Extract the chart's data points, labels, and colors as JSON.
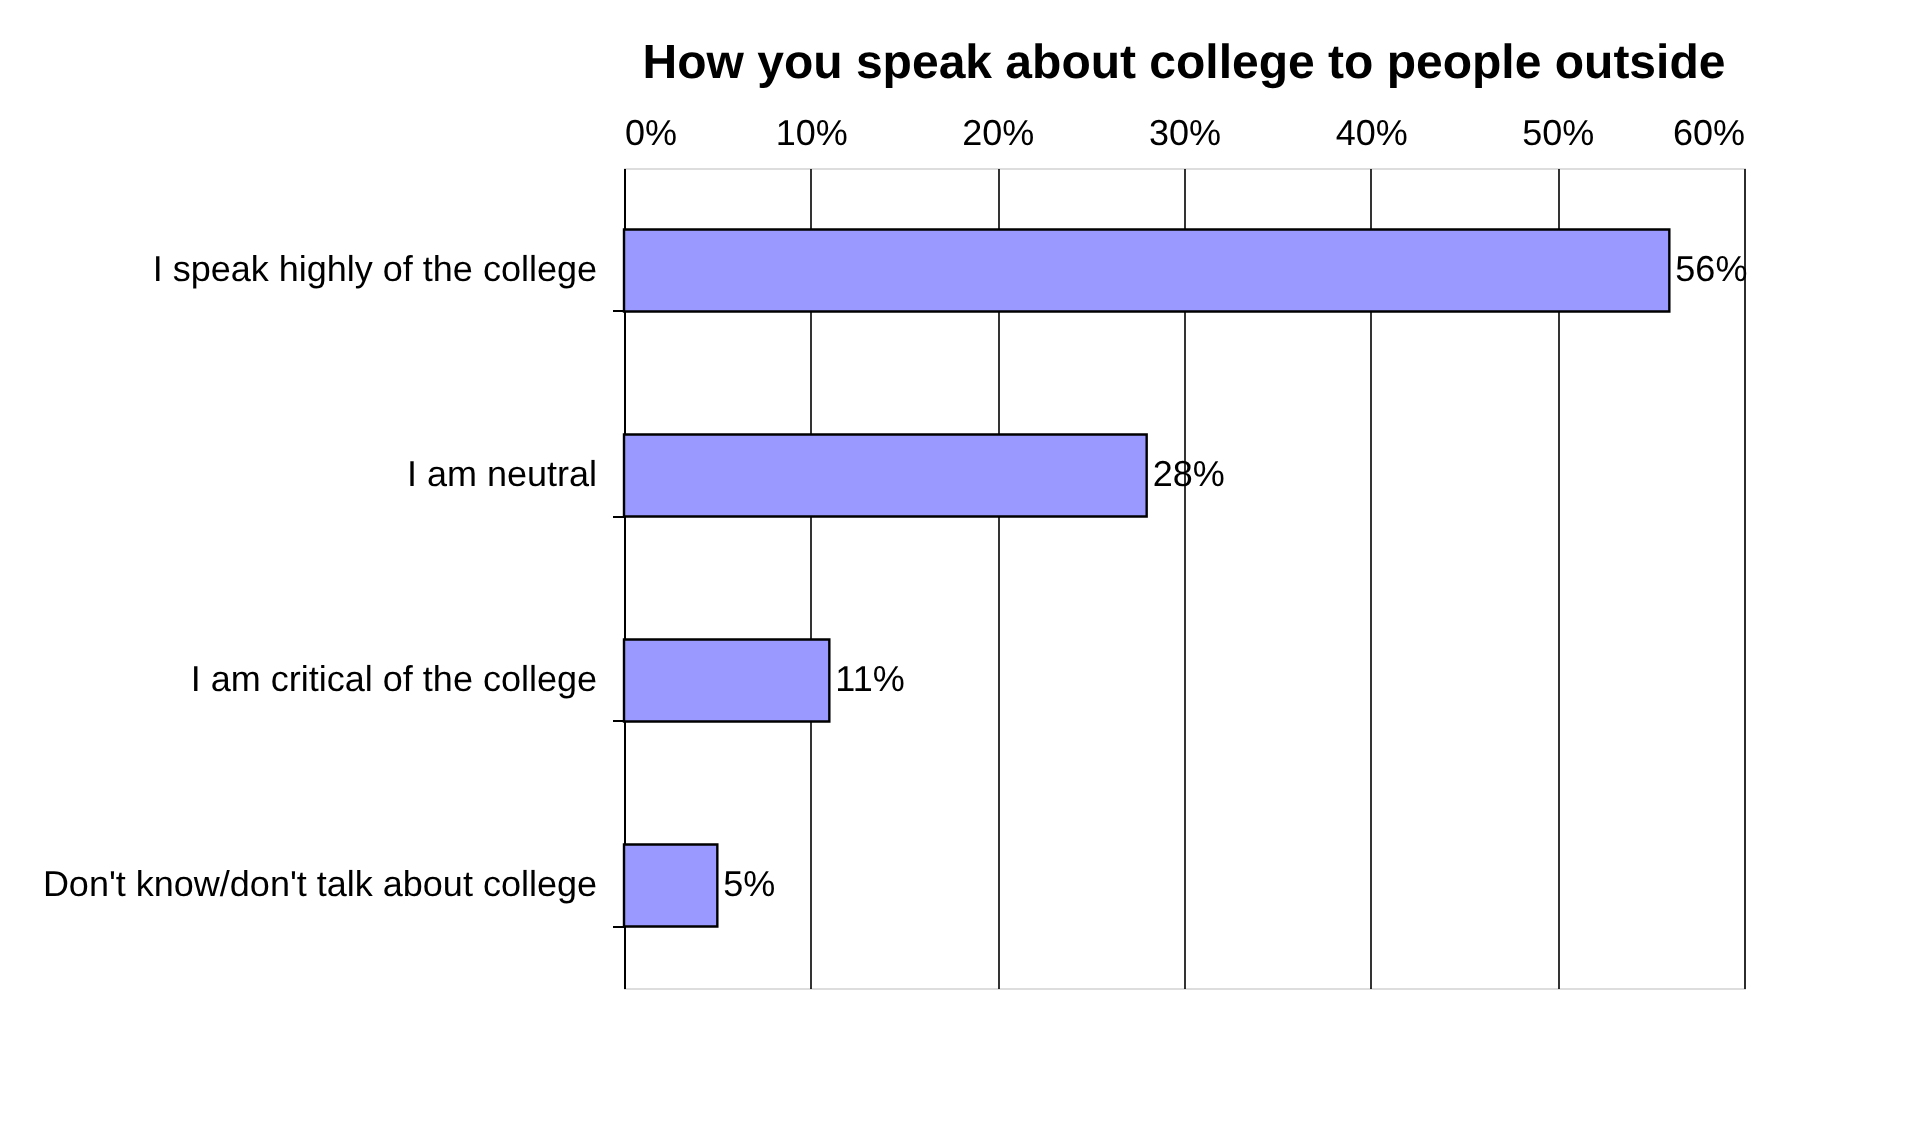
{
  "chart_data": {
    "type": "bar",
    "orientation": "horizontal",
    "title": "How you speak about college to people outside",
    "categories": [
      "I speak highly of the college",
      "I am neutral",
      "I am critical of the college",
      "Don't know/don't talk about college"
    ],
    "values": [
      56,
      28,
      11,
      5
    ],
    "color": "#9999ff",
    "value_labels": [
      "56%",
      "28%",
      "11%",
      "5%"
    ],
    "xlim": [
      0,
      60
    ],
    "xticks": [
      {
        "value": 0,
        "label": "0%"
      },
      {
        "value": 10,
        "label": "10%"
      },
      {
        "value": 20,
        "label": "20%"
      },
      {
        "value": 30,
        "label": "30%"
      },
      {
        "value": 40,
        "label": "40%"
      },
      {
        "value": 50,
        "label": "50%"
      },
      {
        "value": 60,
        "label": "60%"
      }
    ],
    "grid": "x"
  }
}
